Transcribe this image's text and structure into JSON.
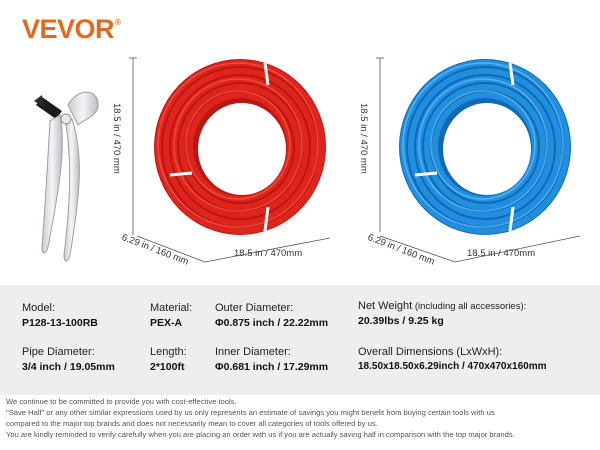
{
  "brand": {
    "name": "VEVOR",
    "mark": "®"
  },
  "dimensions": {
    "red_height": "18.5 in / 470 mm",
    "red_depth": "6.29 in / 160 mm",
    "red_width": "18.5 in / 470mm",
    "blue_height": "18.5 in / 470 mm",
    "blue_depth": "6.29 in / 160 mm",
    "blue_width": "18.5 in / 470mm"
  },
  "specs": {
    "model": {
      "label": "Model:",
      "value": "P128-13-100RB"
    },
    "material": {
      "label": "Material:",
      "value": "PEX-A"
    },
    "outer_diameter": {
      "label": "Outer Diameter:",
      "value": "Φ0.875 inch / 22.22mm"
    },
    "net_weight": {
      "label": "Net Weight",
      "note": " (including all accessories):",
      "value": "20.39lbs / 9.25  kg"
    },
    "pipe_diameter": {
      "label": "Pipe Diameter:",
      "value": "3/4 inch / 19.05mm"
    },
    "length": {
      "label": "Length:",
      "value": "2*100ft"
    },
    "inner_diameter": {
      "label": "Inner Diameter:",
      "value": "Φ0.681 inch / 17.29mm"
    },
    "overall_dimensions": {
      "label": "Overall Dimensions (LxWxH):",
      "value": "18.50x18.50x6.29inch / 470x470x160mm"
    }
  },
  "footer": [
    "We continue to be committed to provide you with cost-effective tools.",
    "\"Save Half\" or any other similar expressions used by us only represents an estimate of savings you might benefit from buying certain tools with us",
    "compared to the major top brands and does not necessarily mean to cover all categories of tools offered by us.",
    "You are kindly reminded to verify carefully when you are placing an order with us if you are actually saving half in comparison with the top major brands."
  ],
  "colors": {
    "brand": "#e2691f",
    "red_pipe": "#e0241c",
    "blue_pipe": "#1f8fe0",
    "spec_bg": "#eeeeee"
  }
}
